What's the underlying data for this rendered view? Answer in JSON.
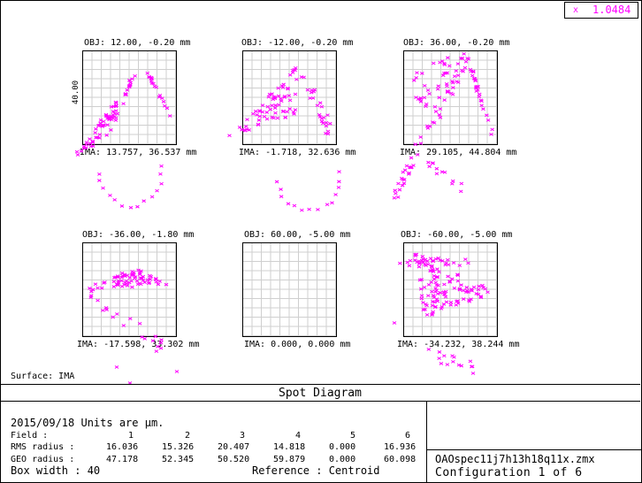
{
  "wavelength": {
    "symbol": "x",
    "value": "1.0484",
    "color": "#ff00ff"
  },
  "scale_label": "40.00",
  "spots": [
    {
      "obj": "OBJ: 12.00, -0.20 mm",
      "ima": "IMA: 13.757, 36.537 mm"
    },
    {
      "obj": "OBJ: -12.00, -0.20 mm",
      "ima": "IMA: -1.718, 32.636 mm"
    },
    {
      "obj": "OBJ: 36.00, -0.20 mm",
      "ima": "IMA: 29.105, 44.804 mm"
    },
    {
      "obj": "OBJ: -36.00, -1.80 mm",
      "ima": "IMA: -17.598, 33.302 mm"
    },
    {
      "obj": "OBJ: 60.00, -5.00 mm",
      "ima": "IMA: 0.000, 0.000 mm"
    },
    {
      "obj": "OBJ: -60.00, -5.00 mm",
      "ima": "IMA: -34.232, 38.244 mm"
    }
  ],
  "surface": "Surface: IMA",
  "title": "Spot Diagram",
  "info": {
    "date_units": "2015/09/18  Units are µm.",
    "field_label": "Field    :",
    "field_values": [
      "1",
      "2",
      "3",
      "4",
      "5",
      "6"
    ],
    "rms_label": "RMS radius :",
    "rms_values": [
      "16.036",
      "15.326",
      "20.407",
      "14.818",
      "0.000",
      "16.936"
    ],
    "geo_label": "GEO radius :",
    "geo_values": [
      "47.178",
      "52.345",
      "50.520",
      "59.879",
      "0.000",
      "60.098"
    ],
    "box_width": "Box width  : 40",
    "reference": "Reference  : Centroid"
  },
  "file_name": "OAOspec11j7h13h18q11x.zmx",
  "configuration": "Configuration 1 of 6"
}
